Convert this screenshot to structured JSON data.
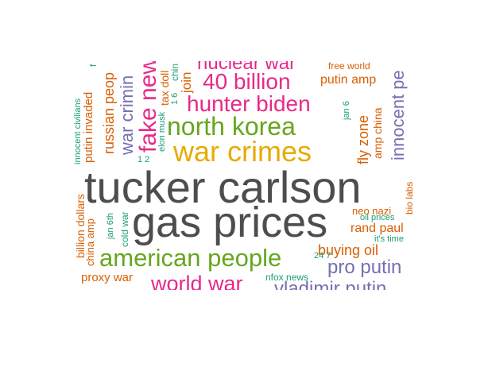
{
  "palette": {
    "green": "#1b9e77",
    "orange": "#d95f02",
    "purple": "#7570b3",
    "magenta": "#e7298a",
    "olive": "#66a61e",
    "gold": "#e6ab02",
    "gray": "#4d4d4d"
  },
  "words": [
    {
      "text": "tucker carlson",
      "color": "gray"
    },
    {
      "text": "gas prices",
      "color": "gray"
    },
    {
      "text": "war crimes",
      "color": "gold"
    },
    {
      "text": "north korea",
      "color": "olive"
    },
    {
      "text": "american people",
      "color": "olive"
    },
    {
      "text": "hunter biden",
      "color": "magenta"
    },
    {
      "text": "40 billion",
      "color": "magenta"
    },
    {
      "text": "nuclear war",
      "color": "magenta"
    },
    {
      "text": "world war",
      "color": "magenta"
    },
    {
      "text": "fake news",
      "color": "magenta"
    },
    {
      "text": "war crimin",
      "color": "purple"
    },
    {
      "text": "vladimir putin",
      "color": "purple"
    },
    {
      "text": "pro putin",
      "color": "purple"
    },
    {
      "text": "innocent pe",
      "color": "purple"
    },
    {
      "text": "russian peop",
      "color": "orange"
    },
    {
      "text": "putin invaded",
      "color": "orange"
    },
    {
      "text": "putin amp",
      "color": "orange"
    },
    {
      "text": "buying oil",
      "color": "orange"
    },
    {
      "text": "rand paul",
      "color": "orange"
    },
    {
      "text": "proxy war",
      "color": "orange"
    },
    {
      "text": "fly zone",
      "color": "orange"
    },
    {
      "text": "billion dollars",
      "color": "orange"
    },
    {
      "text": "china amp",
      "color": "orange"
    },
    {
      "text": "neo nazi",
      "color": "orange"
    },
    {
      "text": "bio labs",
      "color": "orange"
    },
    {
      "text": "amp china",
      "color": "orange"
    },
    {
      "text": "free world",
      "color": "orange"
    },
    {
      "text": "tax doll",
      "color": "orange"
    },
    {
      "text": "join",
      "color": "orange"
    },
    {
      "text": "cold war",
      "color": "green"
    },
    {
      "text": "jan 6th",
      "color": "green"
    },
    {
      "text": "oil prices",
      "color": "green"
    },
    {
      "text": "it's time",
      "color": "green"
    },
    {
      "text": "jan 6",
      "color": "green"
    },
    {
      "text": "elon musk",
      "color": "green"
    },
    {
      "text": "innocent civilians",
      "color": "green"
    },
    {
      "text": "nfox news",
      "color": "green"
    },
    {
      "text": "24 7",
      "color": "green"
    },
    {
      "text": "1 2",
      "color": "green"
    },
    {
      "text": "1 6",
      "color": "green"
    },
    {
      "text": "chin",
      "color": "green"
    },
    {
      "text": "f",
      "color": "green"
    }
  ]
}
